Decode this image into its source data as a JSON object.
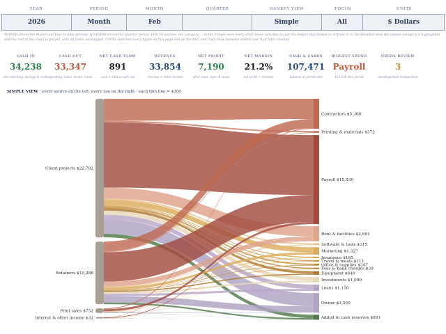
{
  "controls": [
    {
      "label": "YEAR",
      "value": "2026"
    },
    {
      "label": "PERIOD",
      "value": "Month"
    },
    {
      "label": "MONTH",
      "value": "Feb"
    },
    {
      "label": "QUARTER",
      "value": ""
    },
    {
      "label": "SANKEY VIEW",
      "value": "Simple"
    },
    {
      "label": "FOCUS",
      "value": "All"
    },
    {
      "label": "UNITS",
      "value": "$ Dollars"
    }
  ],
  "hint_line1": "MONTH drives the Month and Year-to-date periods; QUARTER drives the Quarter period.        FOCUS isolates one category — in the Simple view every other block vanishes to just the dollars that flowed to or from it; in the Detailed view the chosen category is highlighted",
  "hint_line2": "and the rest of the chain is greyed, with all totals unchanged.        UNITS switches every figure on this page and on the P&L and Cash Flow between dollars and % of total revenue.",
  "kpis": [
    {
      "label": "CASH IN",
      "value": "34,238",
      "sub": "into checking, savings & cards",
      "color": "#2f7d4e"
    },
    {
      "label": "CASH OUT",
      "value": "33,347",
      "sub": "spending, loans, draws, loans",
      "color": "#c0583a"
    },
    {
      "label": "NET CASH FLOW",
      "value": "891",
      "sub": "cash in minus cash out",
      "color": "#1a1a1a"
    },
    {
      "label": "REVENUE",
      "value": "33,854",
      "sub": "revenue + other income",
      "color": "#2a4a7c"
    },
    {
      "label": "NET PROFIT",
      "value": "7,190",
      "sub": "after costs, opex & taxes",
      "color": "#2f7d4e"
    },
    {
      "label": "NET MARGIN",
      "value": "21.2%",
      "sub": "net profit ÷ revenue",
      "color": "#1a1a1a"
    },
    {
      "label": "CASH & CARDS",
      "value": "107,471",
      "sub": "balance at period end",
      "color": "#2a4a7c"
    },
    {
      "label": "BIGGEST SPEND",
      "value": "Payroll",
      "sub": "$15,930 this period",
      "color": "#c0583a"
    },
    {
      "label": "NEEDS REVIEW",
      "value": "3",
      "sub": "uncategorised transactions",
      "color": "#d08a2a"
    }
  ],
  "caption_title": "SIMPLE VIEW",
  "caption_rest": "·  every source on the left, every use on the right  ·  each thin line = $300",
  "chart_data": {
    "type": "sankey",
    "sources": [
      {
        "name": "Client projects",
        "label": "Client projects  $22,782",
        "value": 22782,
        "color": "#a89f92"
      },
      {
        "name": "Retainers",
        "label": "Retainers  $10,288",
        "value": 10288,
        "color": "#a89f92"
      },
      {
        "name": "Print sales",
        "label": "Print sales  $752",
        "value": 752,
        "color": "#a89f92"
      },
      {
        "name": "Interest & other income",
        "label": "Interest & other income  $32",
        "value": 32,
        "color": "#a89f92"
      }
    ],
    "targets": [
      {
        "name": "Contractors",
        "label": "Contractors  $5,366",
        "value": 5366,
        "color": "#c06a52"
      },
      {
        "name": "Printing & materials",
        "label": "Printing & materials  $372",
        "value": 372,
        "color": "#c97e68"
      },
      {
        "name": "Payroll",
        "label": "Payroll  $15,930",
        "value": 15930,
        "color": "#a24c3f"
      },
      {
        "name": "Rent & facilities",
        "label": "Rent & facilities  $2,691",
        "value": 2691,
        "color": "#dea48c"
      },
      {
        "name": "Software & tools",
        "label": "Software & tools  $315",
        "value": 315,
        "color": "#e6c08a"
      },
      {
        "name": "Marketing",
        "label": "Marketing  $1,327",
        "value": 1327,
        "color": "#dcac5c"
      },
      {
        "name": "Insurance",
        "label": "Insurance  $165",
        "value": 165,
        "color": "#d4a050"
      },
      {
        "name": "Travel & meals",
        "label": "Travel & meals  $111",
        "value": 111,
        "color": "#c8903c"
      },
      {
        "name": "Office & supplies",
        "label": "Office & supplies  $347",
        "value": 347,
        "color": "#c48a38"
      },
      {
        "name": "Fees & bank charges",
        "label": "Fees & bank charges  $39",
        "value": 39,
        "color": "#b88232"
      },
      {
        "name": "Equipment",
        "label": "Equipment  $649",
        "value": 649,
        "color": "#b07a30"
      },
      {
        "name": "Investments",
        "label": "Investments  $1,000",
        "value": 1000,
        "color": "#e8d8b8"
      },
      {
        "name": "Loans",
        "label": "Loans  $1,150",
        "value": 1150,
        "color": "#b8a6c8"
      },
      {
        "name": "Owner",
        "label": "Owner  $3,500",
        "value": 3500,
        "color": "#b0a2c4"
      },
      {
        "name": "Added to cash reserves",
        "label": "Added to cash reserves  $891",
        "value": 891,
        "color": "#4f7a4a"
      }
    ],
    "unit_per_line": 300
  }
}
